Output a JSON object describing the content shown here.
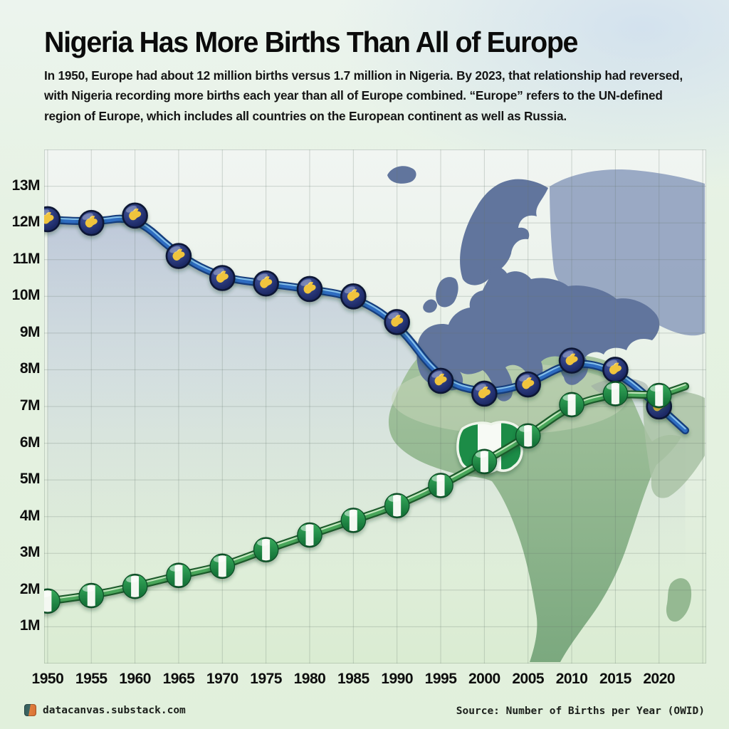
{
  "header": {
    "title": "Nigeria Has More Births Than All of Europe",
    "subtitle": "In 1950, Europe had about 12 million births versus 1.7 million in Nigeria. By 2023, that relationship had reversed, with Nigeria recording more births each year than all of Europe combined. “Europe” refers to the UN-defined region of Europe, which includes all countries on the European continent as well as Russia."
  },
  "footer": {
    "site": "datacanvas.substack.com",
    "source": "Source: Number of Births per Year (OWID)"
  },
  "chart_data": {
    "type": "line",
    "title": "Nigeria Has More Births Than All of Europe",
    "x": [
      1950,
      1955,
      1960,
      1965,
      1970,
      1975,
      1980,
      1985,
      1990,
      1995,
      2000,
      2005,
      2010,
      2015,
      2020,
      2023
    ],
    "series": [
      {
        "name": "Europe",
        "color": "#2e6cc0",
        "outline": "#123c7c",
        "highlight": "#8ec9ee",
        "marker": "europe-map-ball",
        "values": [
          12.1,
          12.0,
          12.2,
          11.1,
          10.5,
          10.35,
          10.2,
          10.0,
          9.3,
          7.7,
          7.35,
          7.6,
          8.25,
          8.0,
          7.0,
          6.35
        ]
      },
      {
        "name": "Nigeria",
        "color": "#49a65a",
        "outline": "#1a5a2a",
        "highlight": "#cdeec6",
        "marker": "nigeria-flag-ball",
        "values": [
          1.7,
          1.85,
          2.1,
          2.4,
          2.65,
          3.1,
          3.5,
          3.9,
          4.3,
          4.85,
          5.5,
          6.2,
          7.05,
          7.35,
          7.3,
          7.55
        ]
      }
    ],
    "x_ticks": [
      1950,
      1955,
      1960,
      1965,
      1970,
      1975,
      1980,
      1985,
      1990,
      1995,
      2000,
      2005,
      2010,
      2015,
      2020
    ],
    "y_ticks": [
      {
        "label": "1M",
        "value": 1
      },
      {
        "label": "2M",
        "value": 2
      },
      {
        "label": "3M",
        "value": 3
      },
      {
        "label": "4M",
        "value": 4
      },
      {
        "label": "5M",
        "value": 5
      },
      {
        "label": "6M",
        "value": 6
      },
      {
        "label": "7M",
        "value": 7
      },
      {
        "label": "8M",
        "value": 8
      },
      {
        "label": "9M",
        "value": 9
      },
      {
        "label": "10M",
        "value": 10
      },
      {
        "label": "11M",
        "value": 11
      },
      {
        "label": "12M",
        "value": 12
      },
      {
        "label": "13M",
        "value": 13
      }
    ],
    "xlim": [
      1949.6,
      2025.4
    ],
    "ylim": [
      0,
      14
    ],
    "unit": "millions of births per year",
    "grid": true,
    "legend_position": "none",
    "background": "Europe (blue) and Africa (green) map silhouettes with Nigeria highlighted in flag colors"
  }
}
